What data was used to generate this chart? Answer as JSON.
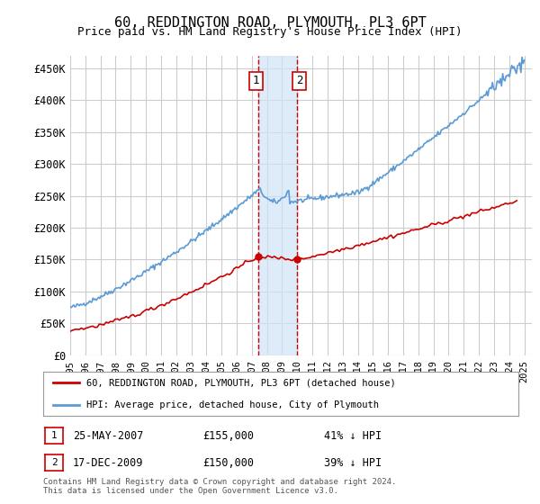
{
  "title": "60, REDDINGTON ROAD, PLYMOUTH, PL3 6PT",
  "subtitle": "Price paid vs. HM Land Registry's House Price Index (HPI)",
  "legend_line1": "60, REDDINGTON ROAD, PLYMOUTH, PL3 6PT (detached house)",
  "legend_line2": "HPI: Average price, detached house, City of Plymouth",
  "footnote": "Contains HM Land Registry data © Crown copyright and database right 2024.\nThis data is licensed under the Open Government Licence v3.0.",
  "sale1_date": "25-MAY-2007",
  "sale1_price": 155000,
  "sale1_hpi": "41% ↓ HPI",
  "sale2_date": "17-DEC-2009",
  "sale2_price": 150000,
  "sale2_hpi": "39% ↓ HPI",
  "ylim": [
    0,
    470000
  ],
  "yticks": [
    0,
    50000,
    100000,
    150000,
    200000,
    250000,
    300000,
    350000,
    400000,
    450000
  ],
  "hpi_color": "#5b9bd5",
  "price_color": "#cc0000",
  "sale1_x": 2007.4,
  "sale2_x": 2009.96,
  "shading_color": "#d0e4f7",
  "dashed_color": "#cc0000",
  "background_color": "#ffffff",
  "grid_color": "#cccccc"
}
